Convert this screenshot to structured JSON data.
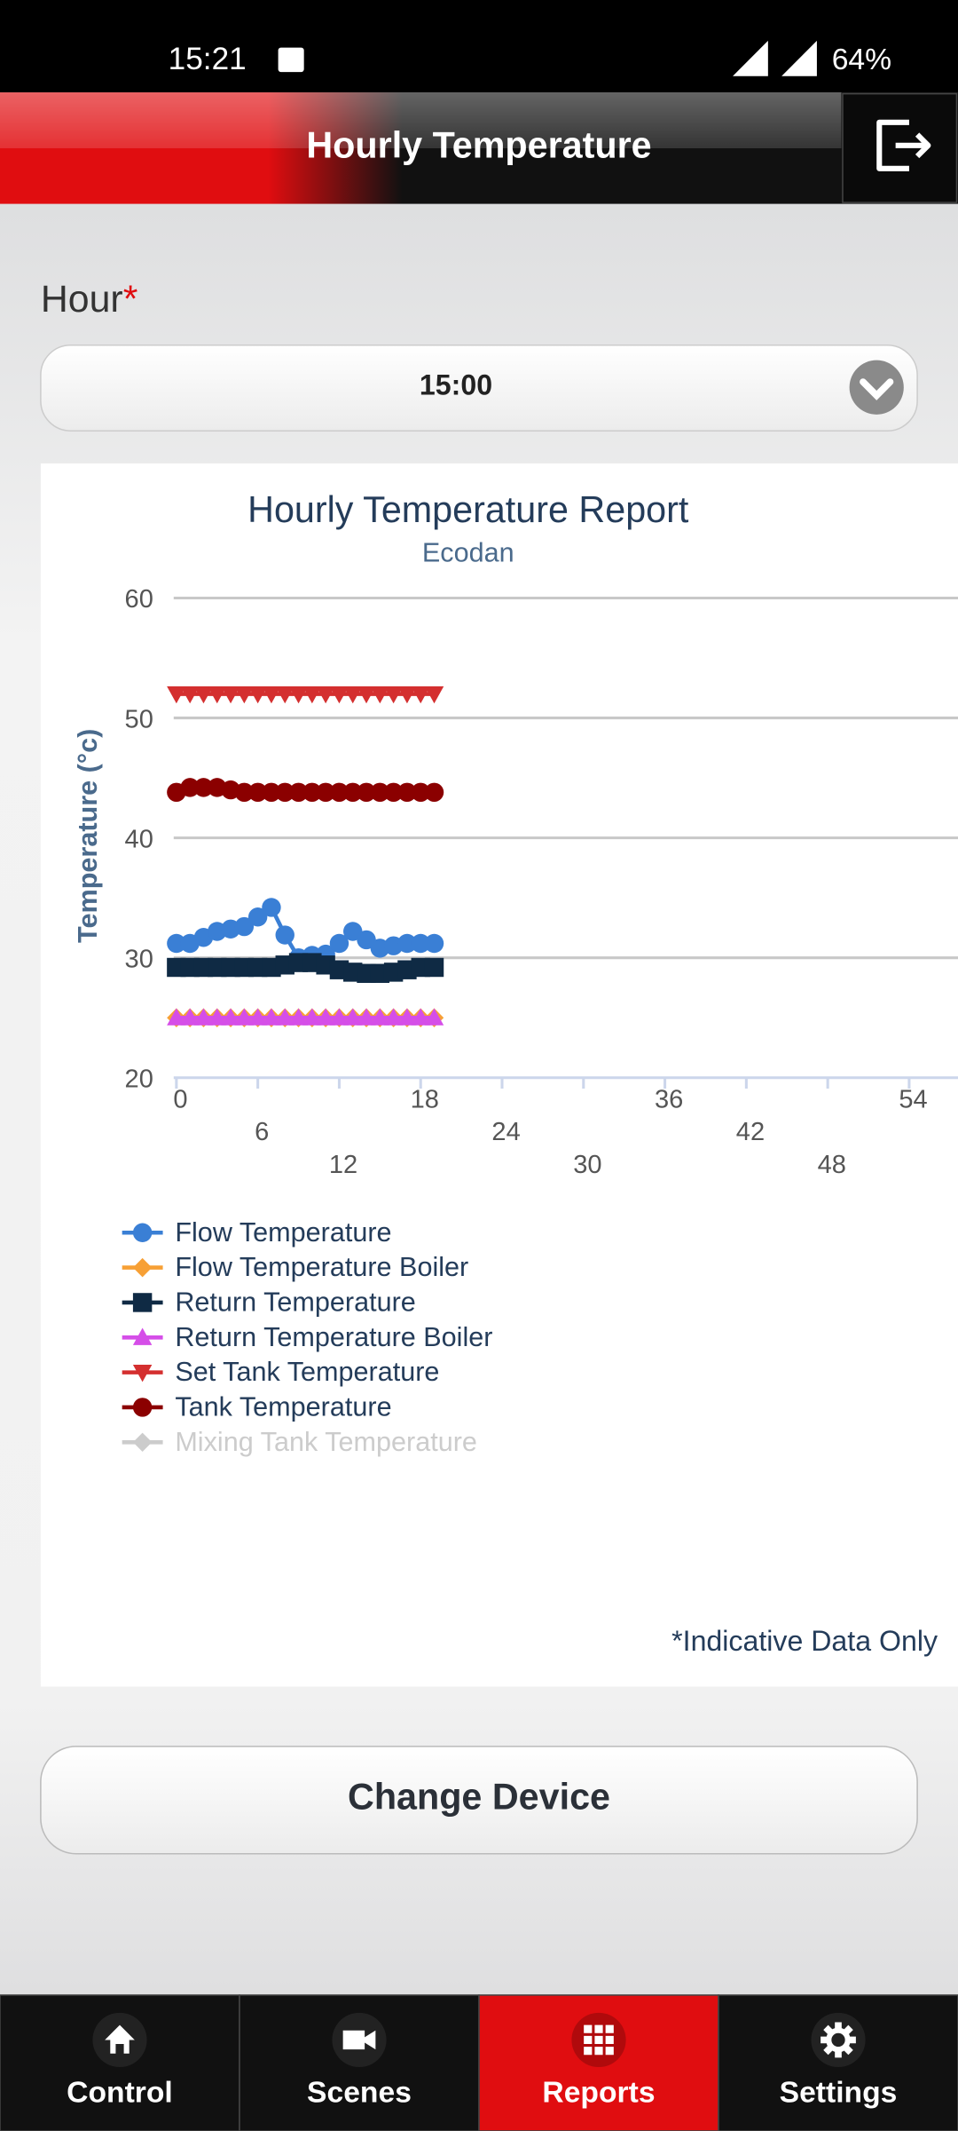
{
  "status_bar": {
    "time": "15:21",
    "battery": "64%"
  },
  "header": {
    "title": "Hourly Temperature"
  },
  "form": {
    "label": "Hour",
    "required": "*",
    "value": "15:00"
  },
  "chart_data": {
    "type": "line",
    "title": "Hourly Temperature Report",
    "subtitle": "Ecodan",
    "y_label": "Temperature (°c)",
    "x": [
      0,
      1,
      2,
      3,
      4,
      5,
      6,
      7,
      8,
      9,
      10,
      11,
      12,
      13,
      14,
      15,
      16,
      17,
      18,
      19
    ],
    "xlim": [
      0,
      58
    ],
    "xticks": [
      0,
      6,
      12,
      18,
      24,
      30,
      36,
      42,
      48,
      54
    ],
    "ylim": [
      20,
      60
    ],
    "yticks": [
      20,
      30,
      40,
      50,
      60
    ],
    "grid": true,
    "series": [
      {
        "name": "Flow Temperature",
        "color": "#3a7fd5",
        "marker": "circle",
        "values": [
          31.2,
          31.2,
          31.7,
          32.2,
          32.4,
          32.6,
          33.4,
          34.2,
          31.9,
          30,
          30.2,
          30.3,
          31.2,
          32.2,
          31.5,
          30.8,
          31,
          31.2,
          31.2,
          31.2
        ]
      },
      {
        "name": "Flow Temperature Boiler",
        "color": "#f7a035",
        "marker": "diamond",
        "values": [
          25,
          25,
          25,
          25,
          25,
          25,
          25,
          25,
          25,
          25,
          25,
          25,
          25,
          25,
          25,
          25,
          25,
          25,
          25,
          25
        ]
      },
      {
        "name": "Return Temperature",
        "color": "#0f2a44",
        "marker": "square",
        "values": [
          29.2,
          29.2,
          29.2,
          29.2,
          29.2,
          29.2,
          29.2,
          29.2,
          29.4,
          29.6,
          29.6,
          29.4,
          29.0,
          28.8,
          28.7,
          28.7,
          28.8,
          29.0,
          29.2,
          29.2
        ]
      },
      {
        "name": "Return Temperature Boiler",
        "color": "#d54ee8",
        "marker": "triangle",
        "values": [
          25,
          25,
          25,
          25,
          25,
          25,
          25,
          25,
          25,
          25,
          25,
          25,
          25,
          25,
          25,
          25,
          25,
          25,
          25,
          25
        ]
      },
      {
        "name": "Set Tank Temperature",
        "color": "#d42f2f",
        "marker": "triangle-down",
        "values": [
          52,
          52,
          52,
          52,
          52,
          52,
          52,
          52,
          52,
          52,
          52,
          52,
          52,
          52,
          52,
          52,
          52,
          52,
          52,
          52
        ]
      },
      {
        "name": "Tank Temperature",
        "color": "#8b0000",
        "marker": "circle",
        "values": [
          43.8,
          44.2,
          44.2,
          44.2,
          44,
          43.8,
          43.8,
          43.8,
          43.8,
          43.8,
          43.8,
          43.8,
          43.8,
          43.8,
          43.8,
          43.8,
          43.8,
          43.8,
          43.8,
          43.8
        ]
      },
      {
        "name": "Mixing Tank Temperature",
        "color": "#cccccc",
        "marker": "diamond",
        "hidden": true,
        "values": [
          null,
          null,
          null,
          null,
          null,
          null,
          null,
          null,
          null,
          null,
          null,
          null,
          null,
          null,
          null,
          null,
          null,
          null,
          null,
          null
        ]
      }
    ]
  },
  "footnote": "*Indicative Data Only",
  "button": "Change Device",
  "nav": {
    "tabs": [
      "Control",
      "Scenes",
      "Reports",
      "Settings"
    ],
    "active": 2
  }
}
